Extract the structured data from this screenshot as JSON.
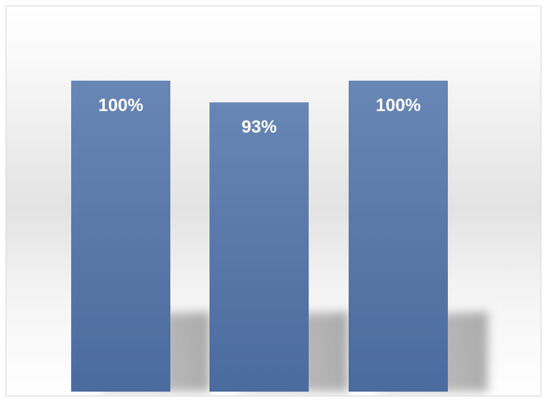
{
  "chart_data": {
    "type": "bar",
    "categories": [
      "",
      "",
      ""
    ],
    "values": [
      100,
      93,
      100
    ],
    "data_labels": [
      "100%",
      "93%",
      "100%"
    ],
    "ylim": [
      0,
      110
    ],
    "title": "",
    "xlabel": "",
    "ylabel": "",
    "grid": false,
    "legend": "none",
    "bar_color_top": "#6886b5",
    "bar_color_bottom": "#4a6b9e",
    "label_color": "#ffffff"
  }
}
